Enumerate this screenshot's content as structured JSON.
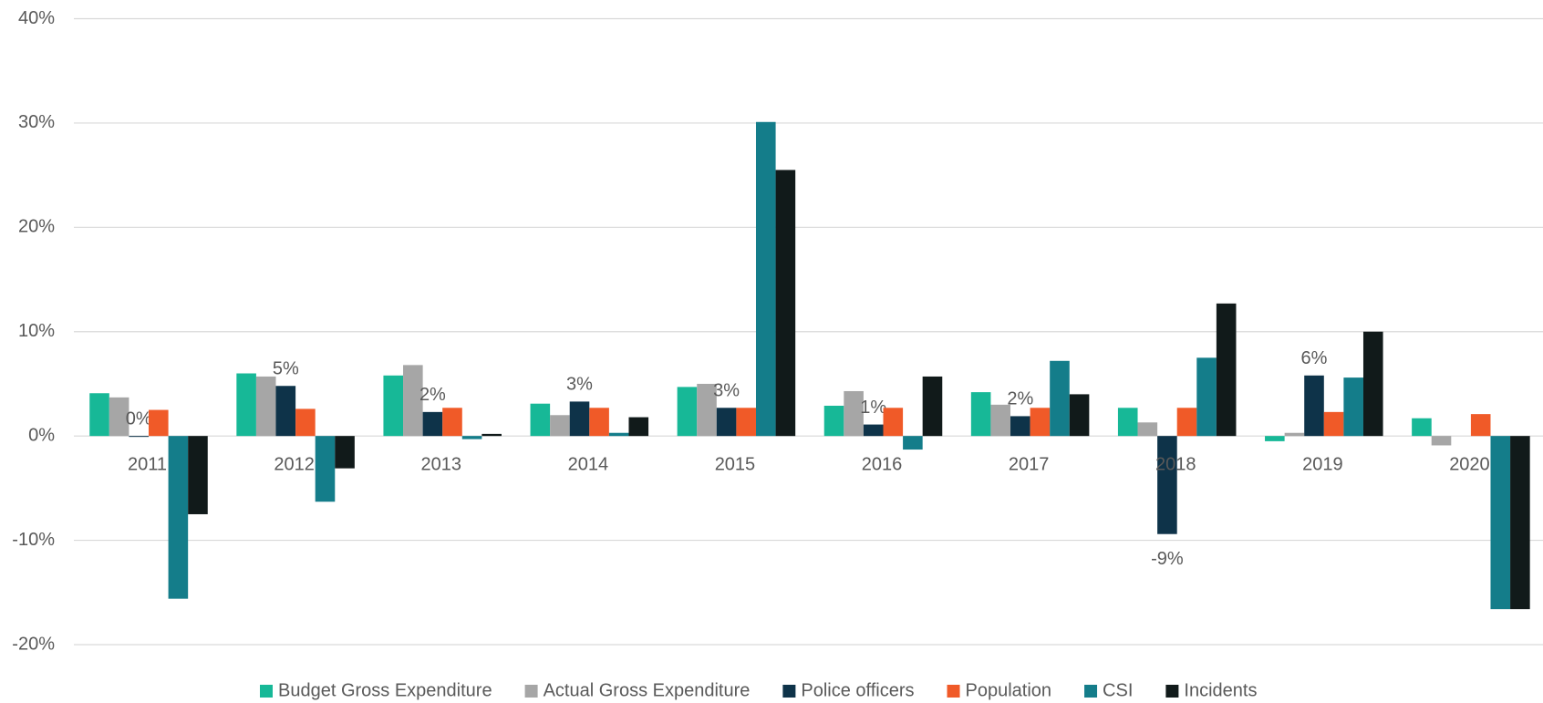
{
  "chart_data": {
    "type": "bar",
    "categories": [
      "2011",
      "2012",
      "2013",
      "2014",
      "2015",
      "2016",
      "2017",
      "2018",
      "2019",
      "2020"
    ],
    "series": [
      {
        "name": "Budget Gross Expenditure",
        "color": "#17b897",
        "values": [
          4.1,
          6.0,
          5.8,
          3.1,
          4.7,
          2.9,
          4.2,
          2.7,
          -0.5,
          1.7
        ]
      },
      {
        "name": "Actual Gross Expenditure",
        "color": "#a6a6a6",
        "values": [
          3.7,
          5.7,
          6.8,
          2.0,
          5.0,
          4.3,
          3.0,
          1.3,
          0.3,
          -0.9
        ]
      },
      {
        "name": "Police officers",
        "color": "#0e3349",
        "values": [
          0,
          4.8,
          2.3,
          3.3,
          2.7,
          1.1,
          1.9,
          -9.4,
          5.8,
          null
        ],
        "value_labels": [
          "0%",
          "5%",
          "2%",
          "3%",
          "3%",
          "1%",
          "2%",
          "-9%",
          "6%",
          null
        ]
      },
      {
        "name": "Population",
        "color": "#f05a28",
        "values": [
          2.5,
          2.6,
          2.7,
          2.7,
          2.7,
          2.7,
          2.7,
          2.7,
          2.3,
          2.1
        ]
      },
      {
        "name": "CSI",
        "color": "#147d8a",
        "values": [
          -15.6,
          -6.3,
          -0.3,
          0.3,
          30.1,
          -1.3,
          7.2,
          7.5,
          5.6,
          -16.6
        ]
      },
      {
        "name": "Incidents",
        "color": "#111a1a",
        "values": [
          -7.5,
          -3.1,
          0.2,
          1.8,
          25.5,
          5.7,
          4.0,
          12.7,
          10.0,
          -16.6
        ]
      }
    ],
    "ylim": [
      -20,
      40
    ],
    "yticks": [
      {
        "value": -20,
        "label": "-20%"
      },
      {
        "value": -10,
        "label": "-10%"
      },
      {
        "value": 0,
        "label": "0%"
      },
      {
        "value": 10,
        "label": "10%"
      },
      {
        "value": 20,
        "label": "20%"
      },
      {
        "value": 30,
        "label": "30%"
      },
      {
        "value": 40,
        "label": "40%"
      }
    ],
    "grid": true,
    "legend": "bottom"
  }
}
